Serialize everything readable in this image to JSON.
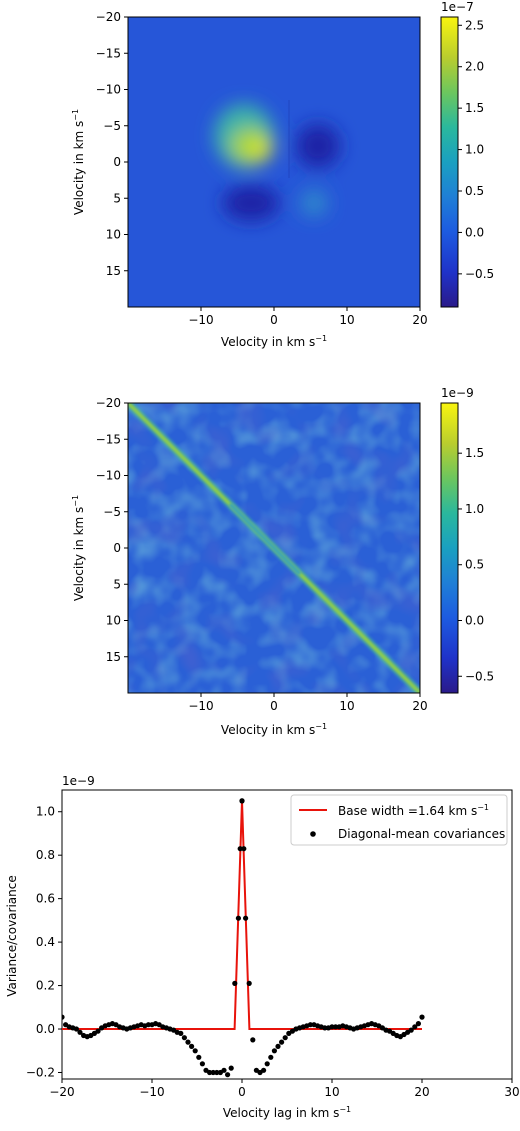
{
  "chart_data": [
    {
      "type": "heatmap",
      "xlabel": "Velocity in km s",
      "ylabel": "Velocity in km s",
      "unit_superscript": "−1",
      "xlim": [
        -20,
        20
      ],
      "ylim": [
        -20,
        20
      ],
      "y_inverted": true,
      "x_ticks": [
        -10,
        0,
        10,
        20
      ],
      "y_ticks": [
        -20,
        -15,
        -10,
        -5,
        0,
        5,
        10,
        15
      ],
      "colorbar": {
        "colormap": "parula-like",
        "multiplier": "1e−7",
        "range": [
          -0.9,
          2.6
        ],
        "ticks": [
          -0.5,
          0.0,
          0.5,
          1.0,
          1.5,
          2.0,
          2.5
        ],
        "tick_labels": [
          "−0.5",
          "0.0",
          "0.5",
          "1.0",
          "1.5",
          "2.0",
          "2.5"
        ]
      },
      "features": [
        {
          "x_kms": -2,
          "y_kms": 1.5,
          "value": 2.6,
          "sign": "positive peak"
        },
        {
          "x_kms": 6,
          "y_kms": 1,
          "value": -0.9,
          "sign": "negative trough"
        },
        {
          "x_kms": -1,
          "y_kms": 6,
          "value": -0.9,
          "sign": "negative trough"
        },
        {
          "x_kms": 5,
          "y_kms": 6,
          "value": 0.3,
          "sign": "weak positive"
        }
      ]
    },
    {
      "type": "heatmap",
      "xlabel": "Velocity in km s",
      "ylabel": "Velocity in km s",
      "unit_superscript": "−1",
      "xlim": [
        -20,
        20
      ],
      "ylim": [
        -20,
        20
      ],
      "y_inverted": true,
      "x_ticks": [
        -10,
        0,
        10,
        20
      ],
      "y_ticks": [
        -20,
        -15,
        -10,
        -5,
        0,
        5,
        10,
        15
      ],
      "colorbar": {
        "colormap": "parula-like",
        "multiplier": "1e−9",
        "range": [
          -0.65,
          1.95
        ],
        "ticks": [
          -0.5,
          0.0,
          0.5,
          1.0,
          1.5
        ],
        "tick_labels": [
          "−0.5",
          "0.0",
          "0.5",
          "1.0",
          "1.5"
        ]
      },
      "features": [
        {
          "description": "diagonal",
          "value_edges": 1.3,
          "value_center": 0.9
        }
      ]
    },
    {
      "type": "line",
      "xlabel": "Velocity lag in km s",
      "ylabel": "Variance/covariance",
      "unit_superscript": "−1",
      "multiplier": "1e−9",
      "xlim": [
        -20,
        30
      ],
      "ylim": [
        -0.23,
        1.1
      ],
      "x_ticks": [
        -20,
        -10,
        0,
        10,
        20,
        30
      ],
      "x_tick_labels": [
        "−20",
        "−10",
        "0",
        "10",
        "20",
        "30"
      ],
      "y_ticks": [
        -0.2,
        0.0,
        0.2,
        0.4,
        0.6,
        0.8,
        1.0
      ],
      "y_tick_labels": [
        "−0.2",
        "0.0",
        "0.2",
        "0.4",
        "0.6",
        "0.8",
        "1.0"
      ],
      "legend_position": "top-right",
      "series": [
        {
          "name": "Base width =1.64 km s",
          "kind": "line",
          "color": "#e8130b",
          "x": [
            -20,
            -0.82,
            0,
            0.82,
            20
          ],
          "y": [
            0,
            0,
            1.05,
            0,
            0
          ]
        },
        {
          "name": "Diagonal-mean covariances",
          "kind": "scatter",
          "color": "#000000",
          "x": [
            -20,
            -19.6,
            -19.2,
            -18.8,
            -18.4,
            -18,
            -17.6,
            -17.2,
            -16.8,
            -16.4,
            -16,
            -15.6,
            -15.2,
            -14.8,
            -14.4,
            -14,
            -13.6,
            -13.2,
            -12.8,
            -12.4,
            -12,
            -11.6,
            -11.2,
            -10.8,
            -10.4,
            -10,
            -9.6,
            -9.2,
            -8.8,
            -8.4,
            -8,
            -7.6,
            -7.2,
            -6.8,
            -6.4,
            -6,
            -5.6,
            -5.2,
            -4.8,
            -4.4,
            -4,
            -3.6,
            -3.2,
            -2.8,
            -2.4,
            -2,
            -1.6,
            -1.2,
            -0.8,
            -0.4,
            0,
            0.4,
            0.8,
            1.2,
            1.6,
            2,
            2.4,
            2.8,
            3.2,
            3.6,
            4,
            4.4,
            4.8,
            5.2,
            5.6,
            6,
            6.4,
            6.8,
            7.2,
            7.6,
            8,
            8.4,
            8.8,
            9.2,
            9.6,
            10,
            10.4,
            10.8,
            11.2,
            11.6,
            12,
            12.4,
            12.8,
            13.2,
            13.6,
            14,
            14.4,
            14.8,
            15.2,
            15.6,
            16,
            16.4,
            16.8,
            17.2,
            17.6,
            18,
            18.4,
            18.8,
            19.2,
            19.6,
            20
          ],
          "y": [
            0.055,
            0.02,
            0.01,
            0.005,
            0,
            -0.015,
            -0.03,
            -0.035,
            -0.03,
            -0.02,
            -0.01,
            0.005,
            0.015,
            0.02,
            0.025,
            0.02,
            0.01,
            0.005,
            0,
            0.005,
            0.01,
            0.015,
            0.02,
            0.015,
            0.02,
            0.02,
            0.025,
            0.02,
            0.01,
            0.005,
            0,
            -0.005,
            -0.015,
            -0.02,
            -0.04,
            -0.06,
            -0.08,
            -0.1,
            -0.13,
            -0.16,
            -0.19,
            -0.2,
            -0.2,
            -0.2,
            -0.2,
            -0.19,
            -0.21,
            -0.18,
            0.21,
            0.51,
            1.05,
            0.51,
            0.21,
            -0.05,
            -0.19,
            -0.2,
            -0.19,
            -0.16,
            -0.13,
            -0.1,
            -0.08,
            -0.06,
            -0.04,
            -0.02,
            -0.01,
            0,
            0.005,
            0.01,
            0.015,
            0.02,
            0.02,
            0.015,
            0.01,
            0.005,
            0.005,
            0.01,
            0.01,
            0.01,
            0.015,
            0.01,
            0.005,
            0,
            0.005,
            0.01,
            0.015,
            0.02,
            0.025,
            0.02,
            0.015,
            0.005,
            -0.005,
            -0.01,
            -0.02,
            -0.03,
            -0.035,
            -0.025,
            -0.015,
            -0.005,
            0.01,
            0.025,
            0.055
          ]
        },
        {
          "name": "",
          "kind": "scatter-extra",
          "color": "#000000",
          "x": [
            -0.2,
            0.2,
            0.0
          ],
          "y": [
            0.83,
            0.83,
            1.05
          ]
        }
      ]
    }
  ]
}
